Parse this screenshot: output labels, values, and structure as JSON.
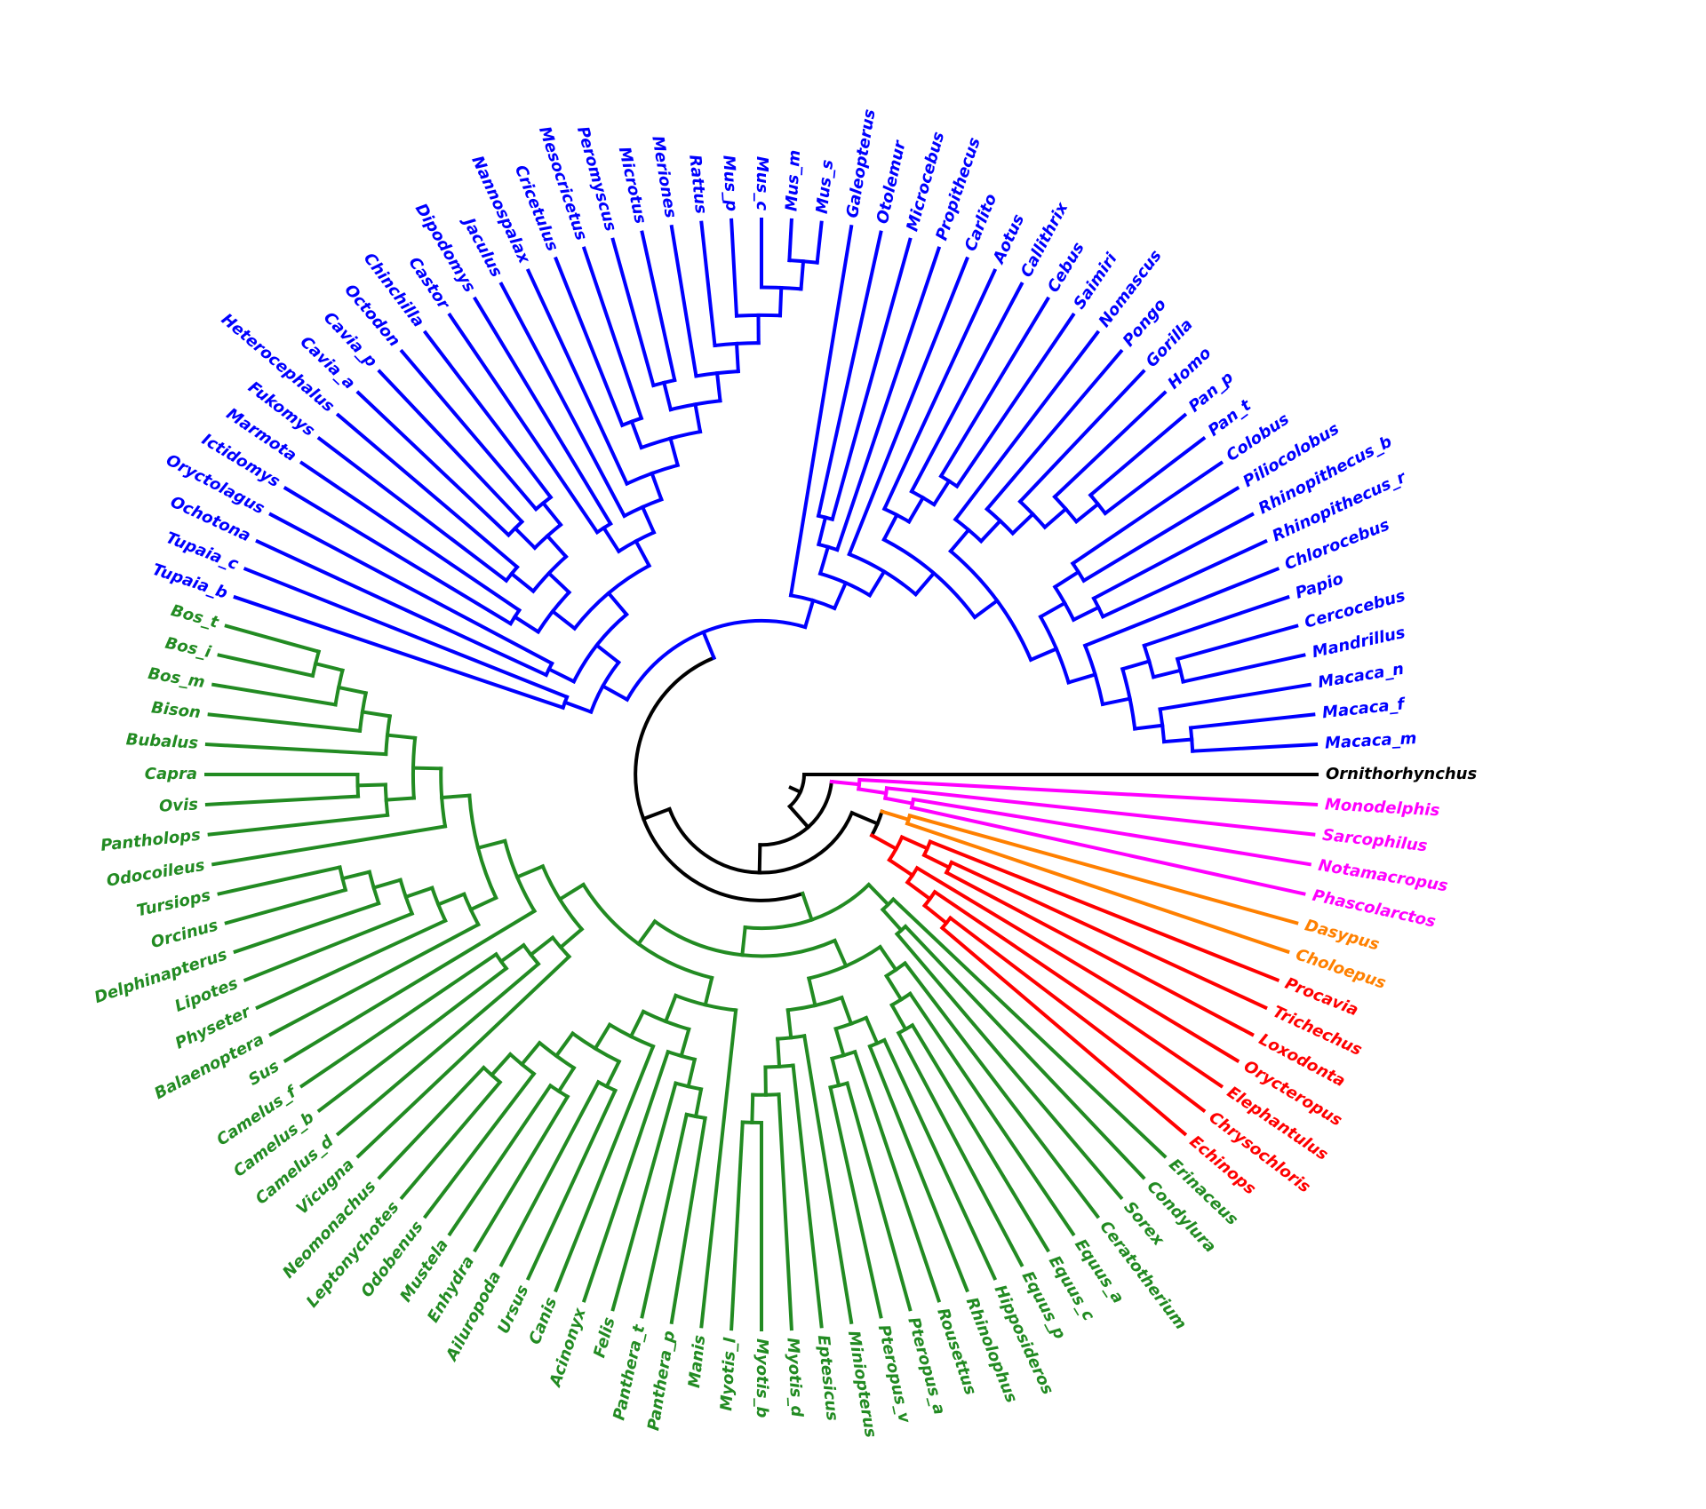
{
  "clades": [
    {
      "color": "#000000",
      "taxa": [
        "Ornithorhynchus"
      ]
    },
    {
      "color": "#ff00ff",
      "taxa": [
        "Monodelphis",
        "Sarcophilus",
        "Notamacropus",
        "Phascolarctos"
      ]
    },
    {
      "color": "#ff8000",
      "taxa": [
        "Dasypus",
        "Choloepus"
      ]
    },
    {
      "color": "#ff0000",
      "taxa": [
        "Procavia",
        "Trichechus",
        "Loxodonta",
        "Orycteropus",
        "Elephantulus",
        "Chrysochloris",
        "Echinops"
      ]
    },
    {
      "color": "#228b22",
      "taxa": [
        "Erinaceus",
        "Condylura",
        "Sorex",
        "Ceratotherium",
        "Equus_a",
        "Equus_c",
        "Equus_p",
        "Hipposideros",
        "Rhinolophus",
        "Rousettus",
        "Pteropus_a",
        "Pteropus_v",
        "Miniopterus",
        "Eptesicus",
        "Myotis_d",
        "Myotis_b",
        "Myotis_l",
        "Manis",
        "Panthera_p",
        "Panthera_t",
        "Felis",
        "Acinonyx",
        "Canis",
        "Ursus",
        "Ailuropoda",
        "Enhydra",
        "Mustela",
        "Odobenus",
        "Leptonychotes",
        "Neomonachus",
        "Vicugna",
        "Camelus_d",
        "Camelus_b",
        "Camelus_f",
        "Sus",
        "Balaenoptera",
        "Physeter",
        "Lipotes",
        "Delphinapterus",
        "Orcinus",
        "Tursiops",
        "Odocoileus",
        "Pantholops",
        "Ovis",
        "Capra",
        "Bubalus",
        "Bison",
        "Bos_m",
        "Bos_i",
        "Bos_t"
      ]
    },
    {
      "color": "#0000ff",
      "taxa": [
        "Tupaia_b",
        "Tupaia_c",
        "Ochotona",
        "Oryctolagus",
        "Ictidomys",
        "Marmota",
        "Fukomys",
        "Heterocephalus",
        "Cavia_a",
        "Cavia_p",
        "Octodon",
        "Chinchilla",
        "Castor",
        "Dipodomys",
        "Jaculus",
        "Nannospalax",
        "Cricetulus",
        "Mesocricetus",
        "Peromyscus",
        "Microtus",
        "Meriones",
        "Rattus",
        "Mus_p",
        "Mus_c",
        "Mus_m",
        "Mus_s",
        "Galeopterus",
        "Otolemur",
        "Microcebus",
        "Propithecus",
        "Carlito",
        "Aotus",
        "Callithrix",
        "Cebus",
        "Saimiri",
        "Nomascus",
        "Pongo",
        "Gorilla",
        "Homo",
        "Pan_p",
        "Pan_t",
        "Colobus",
        "Piliocolobus",
        "Rhinopithecus_b",
        "Rhinopithecus_r",
        "Chlorocebus",
        "Papio",
        "Cercocebus",
        "Mandrillus",
        "Macaca_n",
        "Macaca_f",
        "Macaca_m"
      ]
    }
  ]
}
